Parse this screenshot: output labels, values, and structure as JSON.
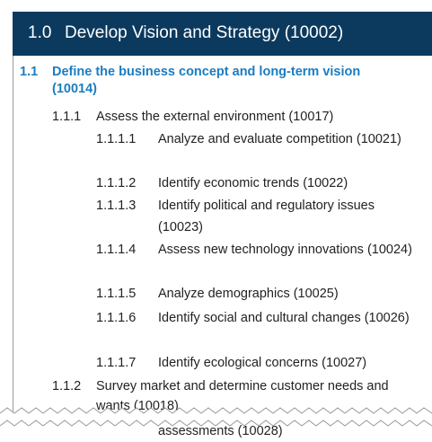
{
  "header": {
    "number": "1.0",
    "title": "Develop Vision and Strategy (10002)"
  },
  "items": [
    {
      "number": "1.1",
      "text": "Define the business concept and long-term vision (10014)"
    },
    {
      "number": "1.1.1",
      "text": "Assess the external environment (10017)"
    },
    {
      "number": "1.1.1.1",
      "text": "Analyze and evaluate competition (10021)"
    },
    {
      "number": "1.1.1.2",
      "text": "Identify economic trends (10022)"
    },
    {
      "number": "1.1.1.3",
      "text": "Identify political and regulatory issues (10023)"
    },
    {
      "number": "1.1.1.4",
      "text": "Assess new technology innovations (10024)"
    },
    {
      "number": "1.1.1.5",
      "text": "Analyze demographics (10025)"
    },
    {
      "number": "1.1.1.6",
      "text": "Identify social and cultural changes (10026)"
    },
    {
      "number": "1.1.1.7",
      "text": "Identify ecological concerns (10027)"
    },
    {
      "number": "1.1.2",
      "text": "Survey market and determine customer needs and wants (10018)"
    }
  ],
  "fragment": "assessments (10028)"
}
